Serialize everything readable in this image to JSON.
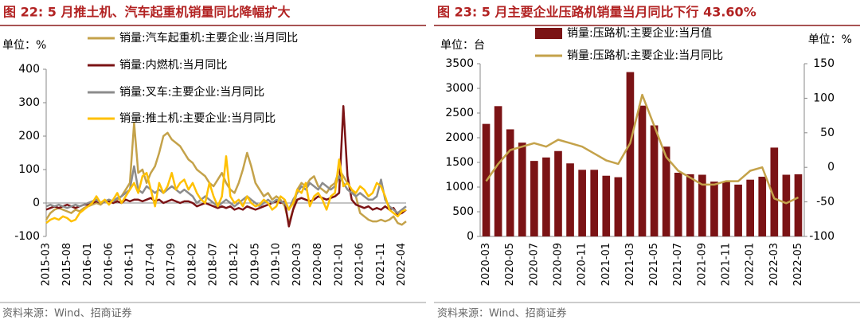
{
  "chart_data": [
    {
      "type": "line",
      "title": "图 22:  5 月推土机、汽车起重机销量同比降幅扩大",
      "unit_label": "单位：%",
      "source": "资料来源：Wind、招商证券",
      "categories": [
        "2015-03",
        null,
        null,
        null,
        null,
        "2015-08",
        null,
        null,
        null,
        null,
        "2016-01",
        null,
        null,
        null,
        null,
        "2016-06",
        null,
        null,
        null,
        null,
        "2016-11",
        null,
        null,
        null,
        null,
        "2017-04",
        null,
        null,
        null,
        null,
        "2017-09",
        null,
        null,
        null,
        null,
        "2018-02",
        null,
        null,
        null,
        null,
        "2018-07",
        null,
        null,
        null,
        null,
        "2018-12",
        null,
        null,
        null,
        null,
        "2019-05",
        null,
        null,
        null,
        null,
        "2019-10",
        null,
        null,
        null,
        null,
        "2020-03",
        null,
        null,
        null,
        null,
        "2020-08",
        null,
        null,
        null,
        null,
        "2021-01",
        null,
        null,
        null,
        null,
        "2021-06",
        null,
        null,
        null,
        null,
        "2021-11",
        null,
        null,
        null,
        null,
        "2022-04",
        null
      ],
      "ylim": [
        -100,
        400
      ],
      "yticks": [
        -100,
        0,
        100,
        200,
        300,
        400
      ],
      "series": [
        {
          "name": "销量:汽车起重机:主要企业:当月同比",
          "color": "#C4A24A",
          "values": [
            -50,
            -30,
            -20,
            -15,
            -20,
            -25,
            -30,
            -20,
            -25,
            -15,
            -10,
            -5,
            0,
            -5,
            5,
            10,
            0,
            10,
            20,
            40,
            60,
            240,
            90,
            100,
            60,
            90,
            110,
            150,
            200,
            210,
            190,
            180,
            170,
            150,
            130,
            120,
            100,
            90,
            80,
            60,
            50,
            70,
            90,
            60,
            40,
            30,
            60,
            100,
            150,
            110,
            60,
            40,
            20,
            30,
            10,
            20,
            10,
            -10,
            -60,
            -20,
            40,
            60,
            50,
            70,
            80,
            50,
            40,
            30,
            50,
            60,
            100,
            80,
            60,
            40,
            20,
            -30,
            -40,
            -50,
            -55,
            -55,
            -50,
            -55,
            -50,
            -40,
            -60,
            -65,
            -55
          ]
        },
        {
          "name": "销量:内燃机:当月同比",
          "color": "#7B1315",
          "values": [
            -20,
            -15,
            -10,
            -15,
            -10,
            -5,
            -10,
            -15,
            -10,
            -5,
            -5,
            0,
            5,
            0,
            5,
            5,
            0,
            5,
            0,
            10,
            5,
            10,
            10,
            5,
            10,
            15,
            5,
            10,
            0,
            5,
            10,
            5,
            0,
            5,
            5,
            0,
            -10,
            -5,
            0,
            -5,
            -10,
            -15,
            -10,
            -15,
            -10,
            -20,
            -15,
            -20,
            -10,
            -15,
            -20,
            -15,
            -10,
            -5,
            0,
            5,
            0,
            5,
            -70,
            -20,
            10,
            15,
            10,
            5,
            10,
            20,
            15,
            10,
            15,
            20,
            30,
            290,
            80,
            10,
            -5,
            -10,
            -15,
            -10,
            -20,
            -15,
            -20,
            -10,
            -20,
            -15,
            -35,
            -30,
            -20
          ]
        },
        {
          "name": "销量:叉车:主要企业:当月同比",
          "color": "#8C8C8C",
          "values": [
            -10,
            -5,
            -10,
            -5,
            -10,
            -15,
            -10,
            -5,
            -10,
            -5,
            0,
            5,
            10,
            0,
            5,
            10,
            5,
            15,
            20,
            30,
            40,
            110,
            40,
            30,
            50,
            40,
            30,
            40,
            30,
            40,
            50,
            40,
            30,
            40,
            30,
            20,
            0,
            10,
            20,
            10,
            0,
            -10,
            0,
            10,
            0,
            -10,
            0,
            10,
            20,
            10,
            0,
            -10,
            0,
            10,
            0,
            10,
            5,
            0,
            -20,
            10,
            30,
            50,
            40,
            60,
            50,
            40,
            60,
            50,
            40,
            50,
            80,
            60,
            40,
            30,
            20,
            30,
            20,
            10,
            10,
            20,
            70,
            10,
            -10,
            -20,
            -30,
            -20,
            -10
          ]
        },
        {
          "name": "销量:推土机:主要企业:当月同比",
          "color": "#FFC000",
          "values": [
            -60,
            -50,
            -45,
            -50,
            -40,
            -45,
            -55,
            -50,
            -30,
            -20,
            -10,
            0,
            20,
            0,
            10,
            -5,
            10,
            30,
            0,
            20,
            40,
            60,
            30,
            80,
            90,
            40,
            -10,
            60,
            30,
            50,
            90,
            40,
            60,
            70,
            40,
            60,
            30,
            10,
            0,
            60,
            20,
            -10,
            20,
            140,
            20,
            0,
            10,
            -10,
            20,
            0,
            -10,
            -5,
            10,
            0,
            -20,
            -10,
            20,
            10,
            -20,
            0,
            40,
            30,
            60,
            -10,
            20,
            30,
            10,
            -20,
            20,
            30,
            130,
            50,
            60,
            40,
            30,
            50,
            40,
            20,
            30,
            60,
            50,
            20,
            -20,
            -30,
            -40,
            -25,
            -20
          ]
        }
      ]
    },
    {
      "type": "combo",
      "title": "图 23:  5 月主要企业压路机销量当月同比下行 43.60%",
      "unit_label": "单位：台",
      "unit_label_right": "单位：%",
      "source": "资料来源：Wind、招商证券",
      "categories": [
        "2020-03",
        null,
        "2020-05",
        null,
        "2020-07",
        null,
        "2020-09",
        null,
        "2020-11",
        null,
        "2021-01",
        null,
        "2021-03",
        null,
        "2021-05",
        null,
        "2021-07",
        null,
        "2021-09",
        null,
        "2021-11",
        null,
        "2022-01",
        null,
        "2022-03",
        null,
        "2022-05"
      ],
      "ylim": [
        0,
        3500
      ],
      "yticks": [
        0,
        500,
        1000,
        1500,
        2000,
        2500,
        3000,
        3500
      ],
      "y2lim": [
        -100,
        150
      ],
      "y2ticks": [
        -100,
        -50,
        0,
        50,
        100,
        150
      ],
      "series": [
        {
          "name": "销量:压路机:主要企业:当月值",
          "kind": "bar",
          "color": "#7B1315",
          "values": [
            2280,
            2640,
            2170,
            1900,
            1530,
            1600,
            1730,
            1480,
            1350,
            1350,
            1230,
            1200,
            3330,
            2650,
            2250,
            1820,
            1290,
            1260,
            1250,
            1110,
            1110,
            1050,
            1150,
            1210,
            1800,
            1250,
            1260
          ]
        },
        {
          "name": "销量:压路机:主要企业:当月同比",
          "kind": "line",
          "axis": "y2",
          "color": "#C4A24A",
          "values": [
            -20,
            5,
            25,
            30,
            35,
            30,
            40,
            35,
            30,
            20,
            10,
            5,
            35,
            105,
            60,
            15,
            -5,
            -15,
            -25,
            -25,
            -20,
            -20,
            -5,
            0,
            -45,
            -52,
            -43.6
          ]
        }
      ]
    }
  ]
}
